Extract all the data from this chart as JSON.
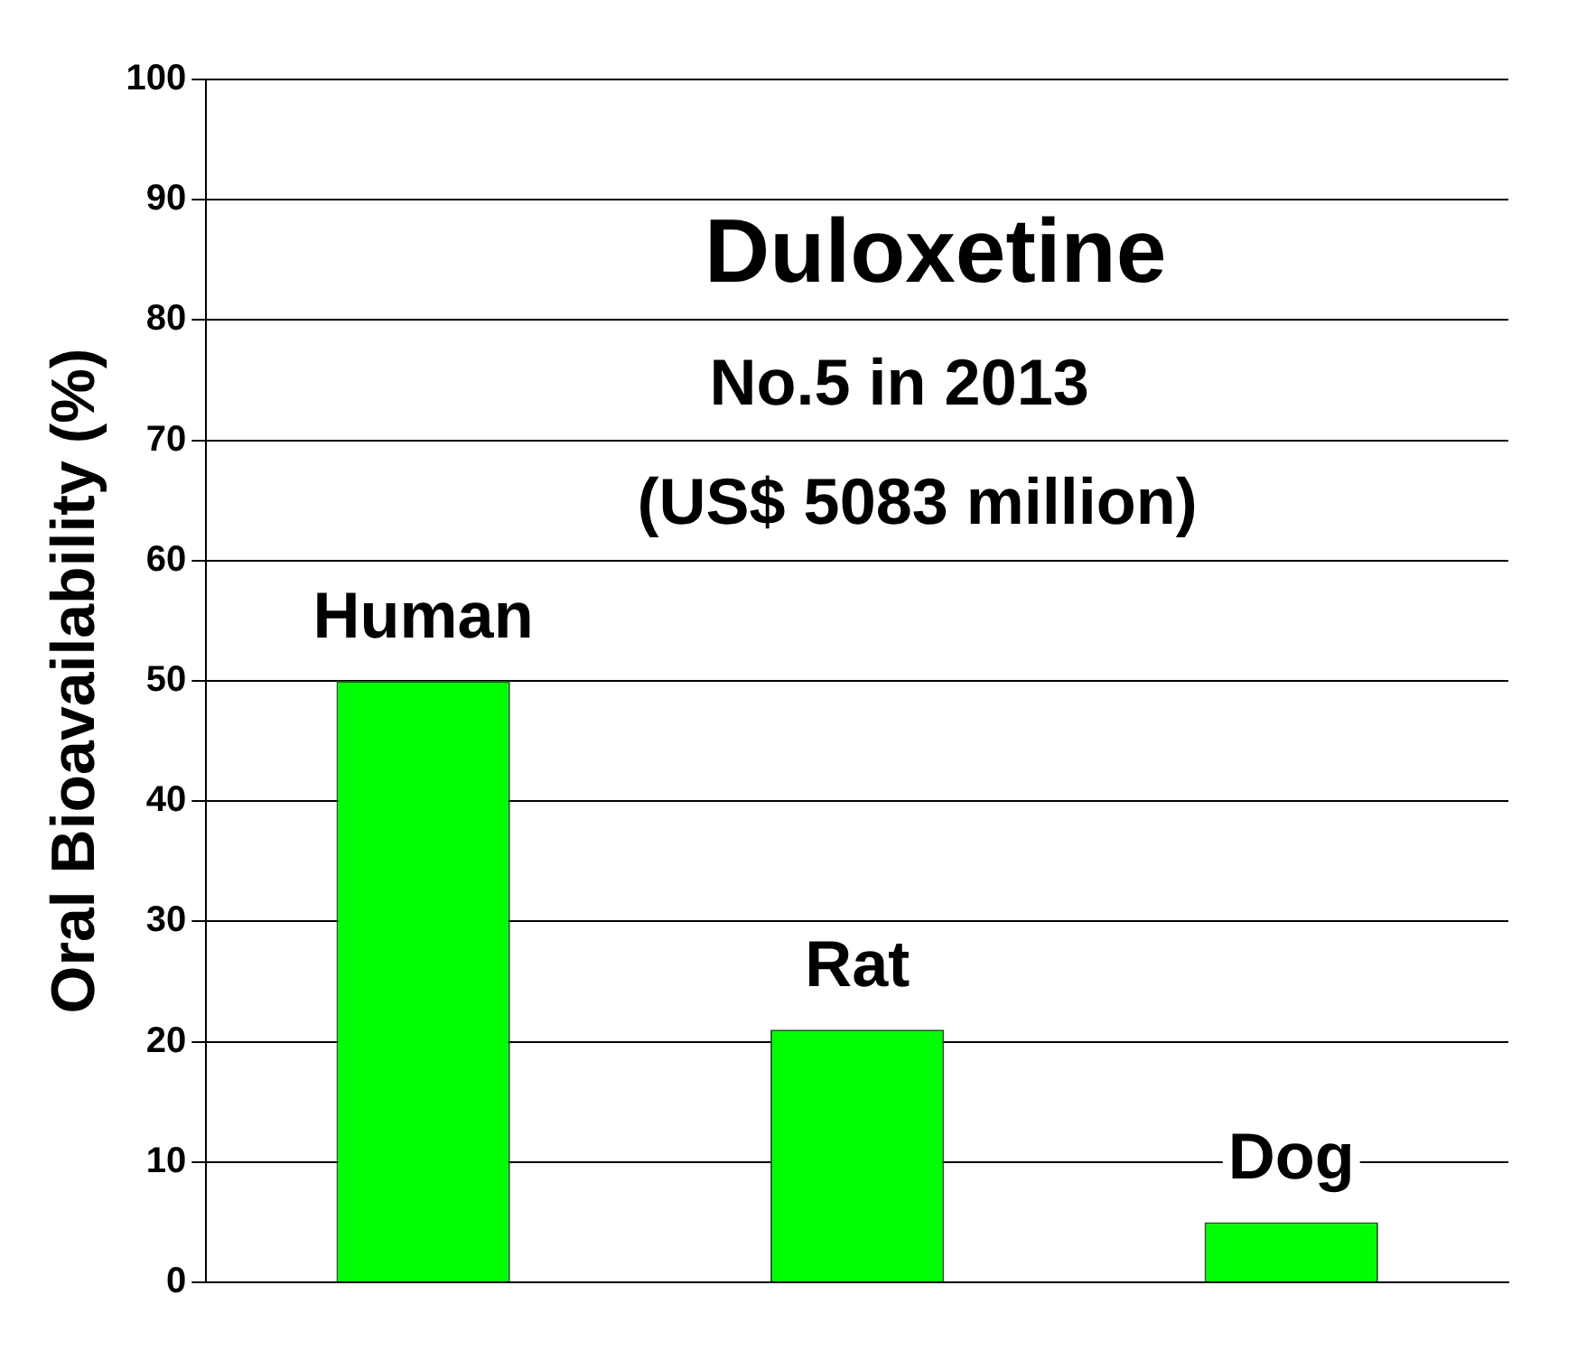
{
  "chart_data": {
    "type": "bar",
    "title": "Duloxetine",
    "ylabel": "Oral Bioavailability (%)",
    "annotations": [
      "No.5 in 2013",
      "(US$ 5083 million)"
    ],
    "categories": [
      "Human",
      "Rat",
      "Dog"
    ],
    "values": [
      50,
      21,
      5
    ],
    "color": "#00ff00",
    "ylim": [
      0,
      100
    ],
    "yticks": [
      0,
      10,
      20,
      30,
      40,
      50,
      60,
      70,
      80,
      90,
      100
    ],
    "grid": "y",
    "legend": false
  }
}
